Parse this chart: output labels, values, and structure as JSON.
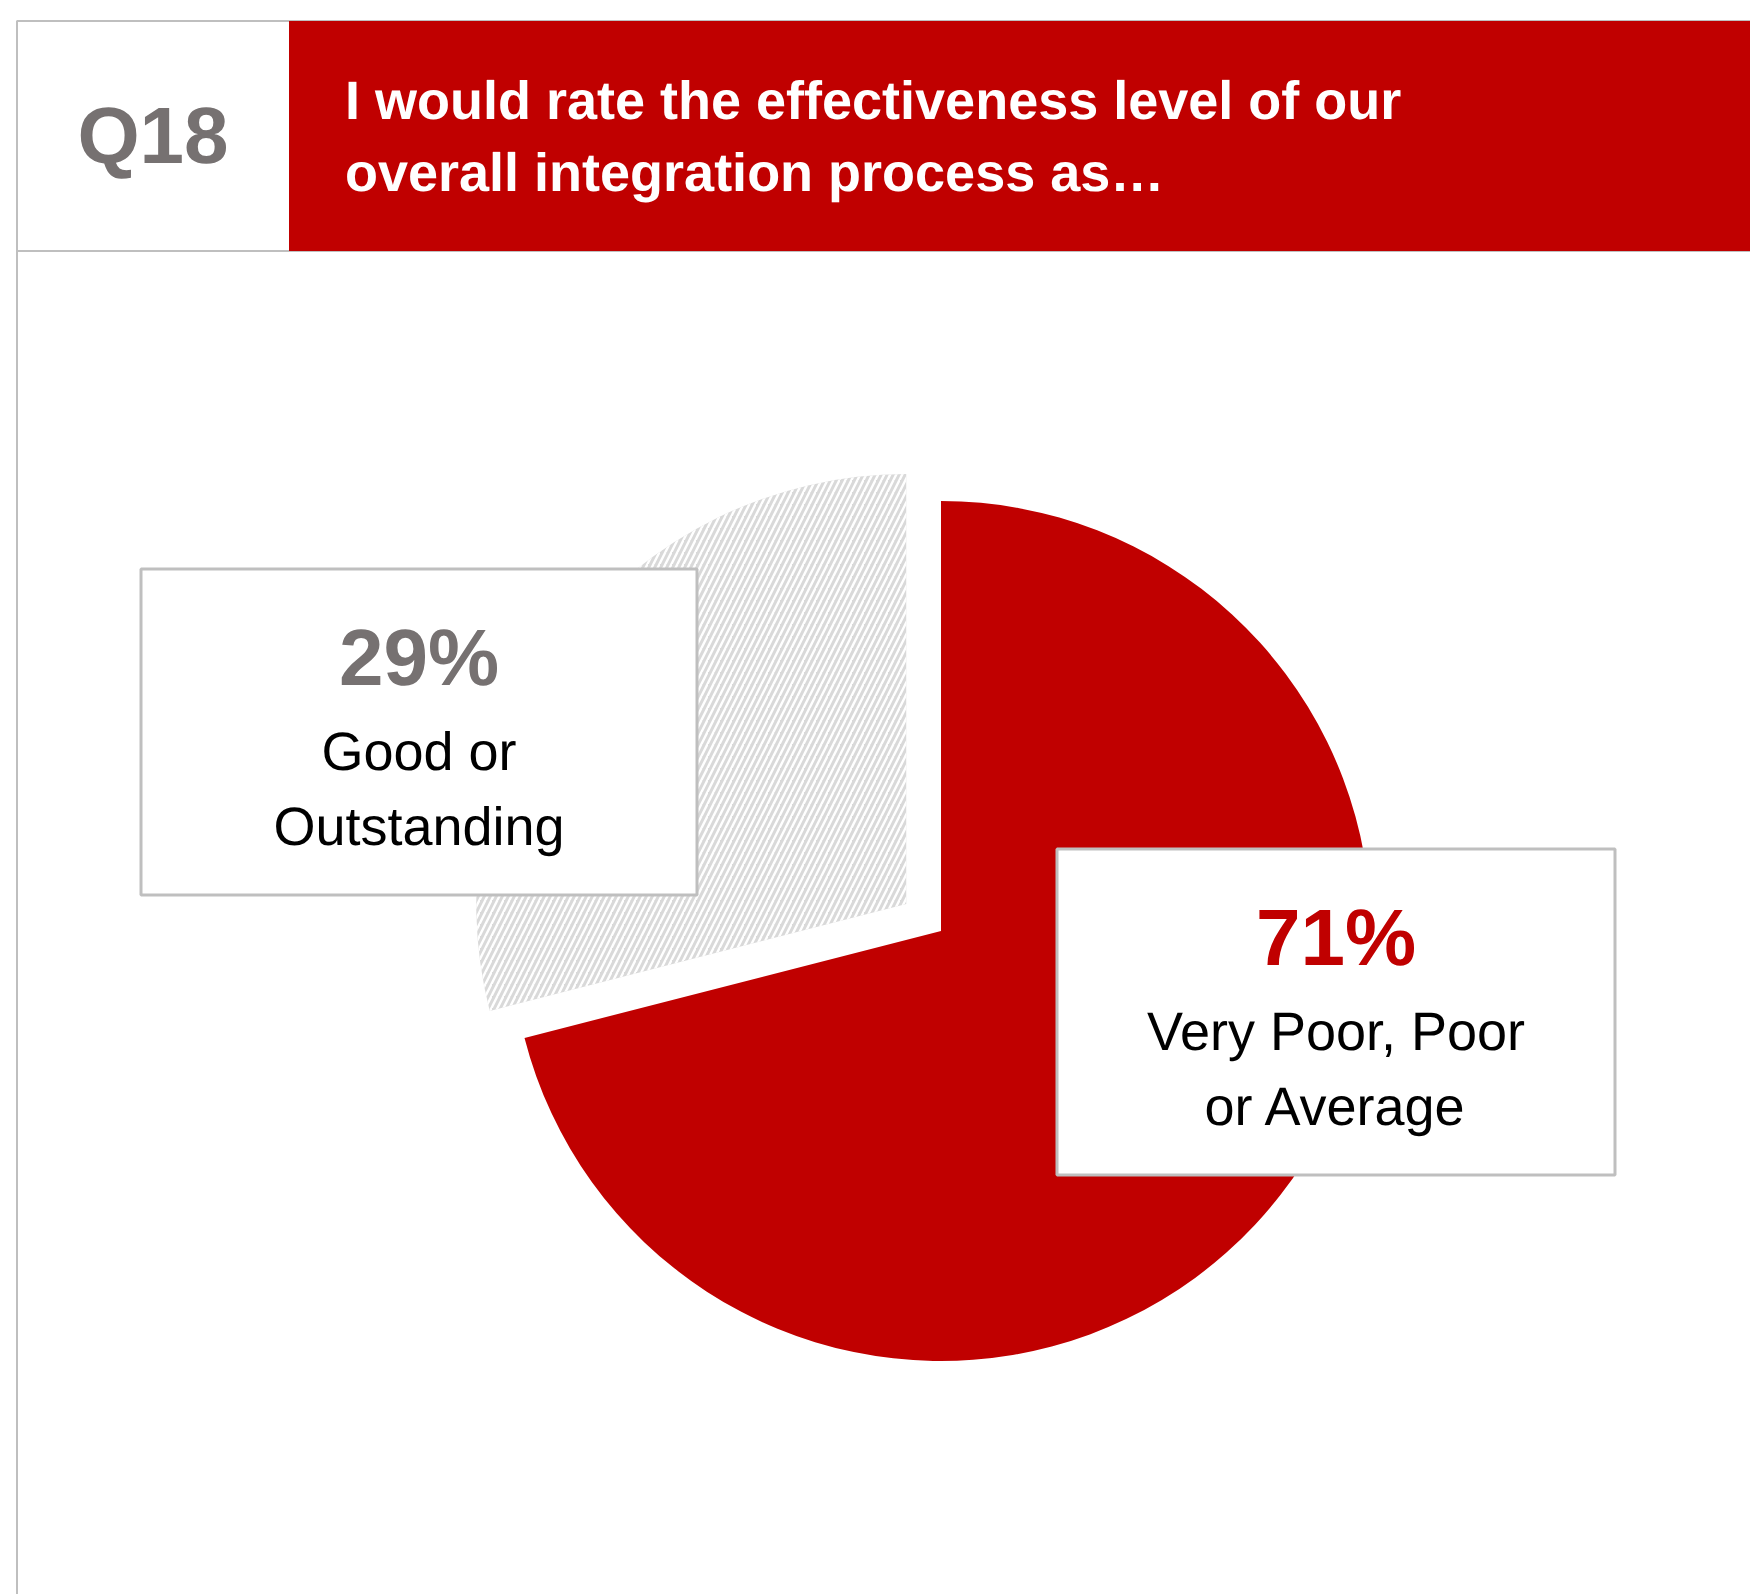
{
  "chart_data": {
    "type": "pie",
    "title": "Q18",
    "subtitle": "I would rate the effectiveness level of our overall integration process as…",
    "categories": [
      "Very Poor, Poor or Average",
      "Good or Outstanding"
    ],
    "values": [
      71,
      29
    ],
    "colors": [
      "#c00000",
      "#d9d9d9"
    ],
    "value_labels": [
      "71%",
      "29%"
    ]
  }
}
